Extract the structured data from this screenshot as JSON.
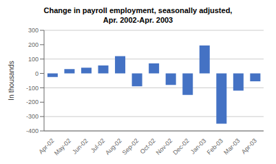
{
  "chart_data": {
    "type": "bar",
    "title": "Change in payroll employment, seasonally adjusted,",
    "subtitle": "Apr. 2002-Apr. 2003",
    "categories": [
      "Apr-02",
      "May-02",
      "Jun-02",
      "Jul-02",
      "Aug-02",
      "Sep-02",
      "Oct-02",
      "Nov-02",
      "Dec-02",
      "Jan-03",
      "Feb-03",
      "Mar-03",
      "Apr-03"
    ],
    "values": [
      -25,
      30,
      40,
      55,
      120,
      -90,
      70,
      -80,
      -150,
      195,
      -350,
      -120,
      -55
    ],
    "color": "#4472C4",
    "ylabel": "In thousands",
    "ylim": [
      -400,
      300
    ],
    "yticks": [
      -400,
      -300,
      -200,
      -100,
      0,
      100,
      200,
      300
    ],
    "grid": true
  }
}
